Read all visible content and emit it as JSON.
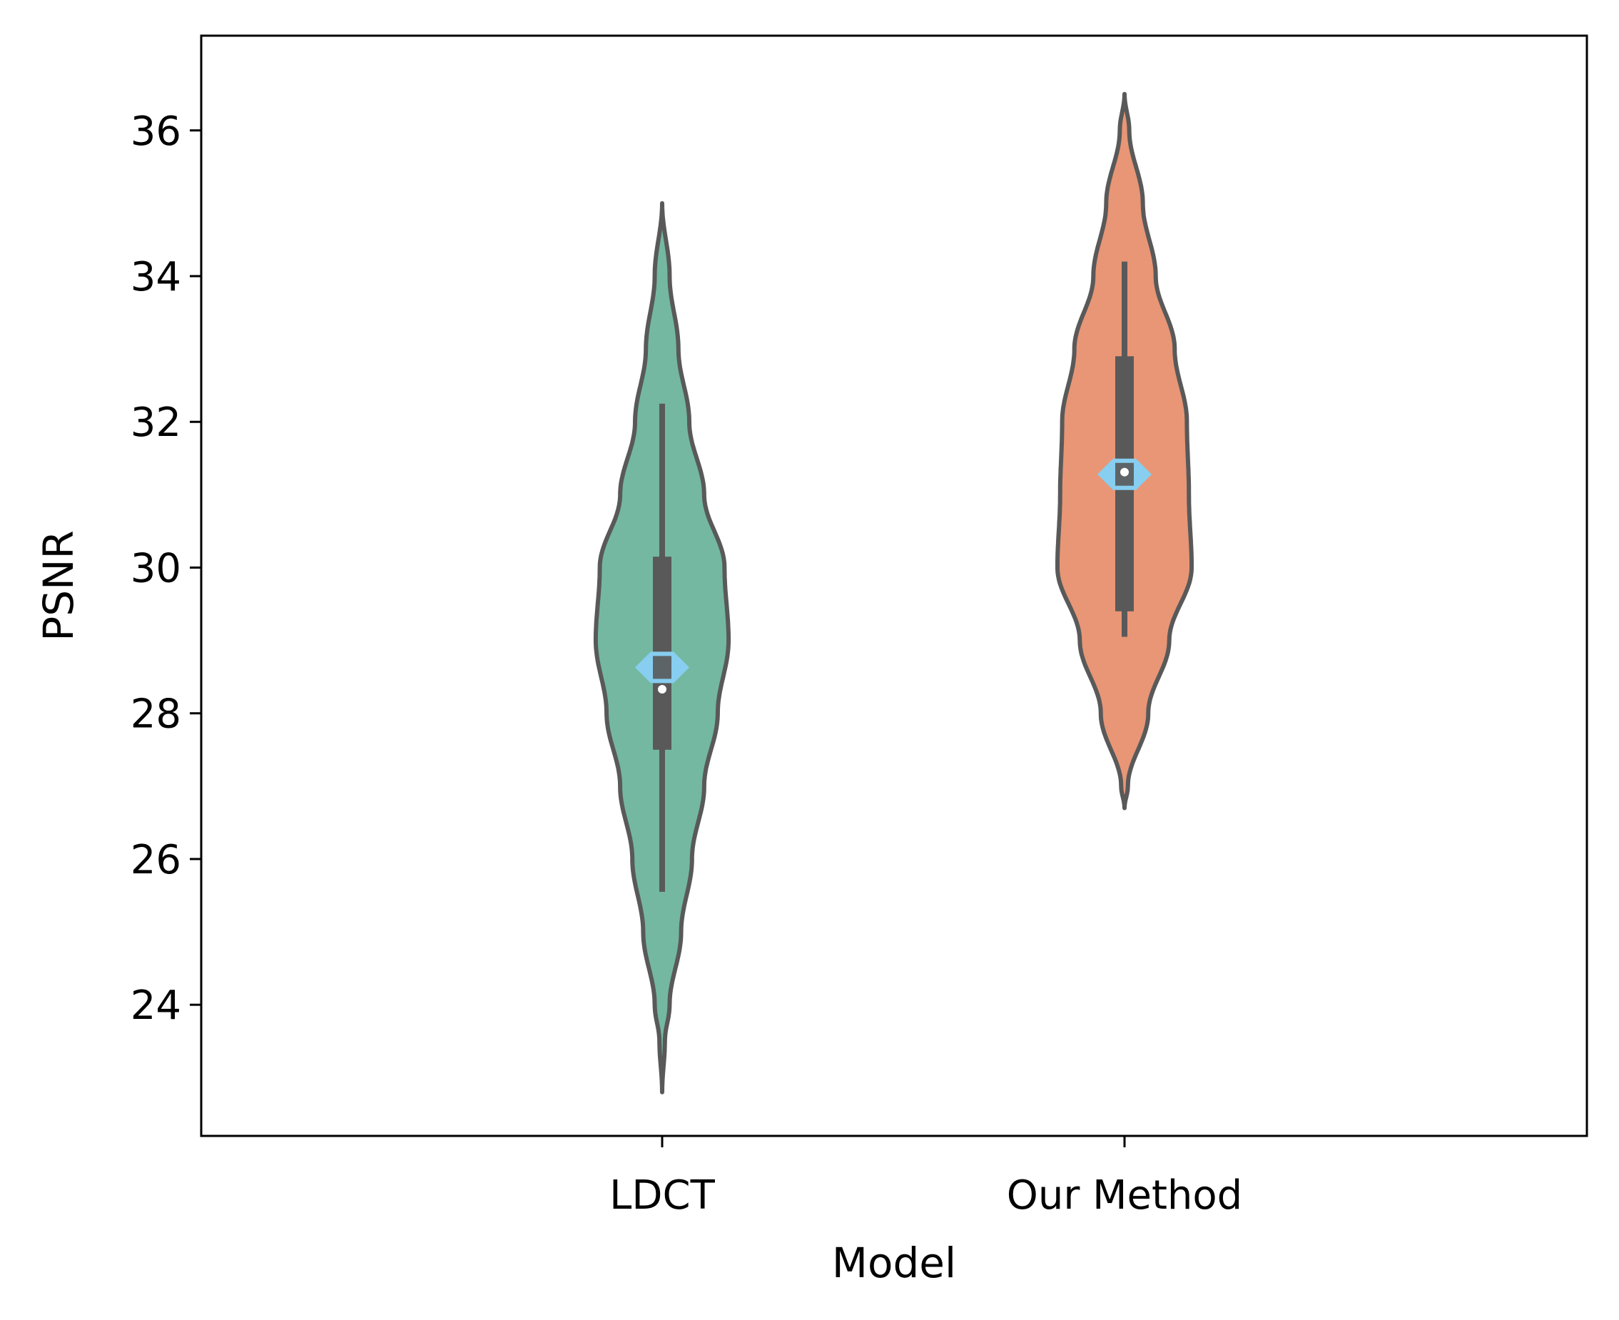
{
  "chart_data": {
    "type": "violin",
    "title": "",
    "xlabel": "Model",
    "ylabel": "PSNR",
    "categories": [
      "LDCT",
      "Our Method"
    ],
    "ylim": [
      22.2,
      37.3
    ],
    "yticks": [
      24,
      26,
      28,
      30,
      32,
      34,
      36
    ],
    "grid": false,
    "legend": "none",
    "series": [
      {
        "name": "LDCT",
        "color": "#74b8a2",
        "range": [
          22.8,
          35.0
        ],
        "density_profile": [
          [
            22.8,
            0.0
          ],
          [
            23.5,
            0.04
          ],
          [
            24.0,
            0.11
          ],
          [
            25.0,
            0.28
          ],
          [
            26.0,
            0.44
          ],
          [
            27.0,
            0.62
          ],
          [
            28.0,
            0.82
          ],
          [
            29.0,
            0.98
          ],
          [
            30.0,
            0.92
          ],
          [
            31.0,
            0.62
          ],
          [
            32.0,
            0.4
          ],
          [
            33.0,
            0.24
          ],
          [
            34.0,
            0.11
          ],
          [
            35.0,
            0.0
          ]
        ],
        "whisker": [
          25.55,
          32.25
        ],
        "box": [
          27.5,
          30.15
        ],
        "median": 28.33,
        "mean": 28.63
      },
      {
        "name": "Our Method",
        "color": "#e89676",
        "range": [
          26.7,
          36.5
        ],
        "density_profile": [
          [
            26.7,
            0.0
          ],
          [
            27.0,
            0.05
          ],
          [
            28.0,
            0.35
          ],
          [
            29.0,
            0.66
          ],
          [
            30.0,
            0.99
          ],
          [
            31.0,
            0.95
          ],
          [
            32.0,
            0.92
          ],
          [
            33.0,
            0.74
          ],
          [
            34.0,
            0.46
          ],
          [
            35.0,
            0.27
          ],
          [
            36.0,
            0.07
          ],
          [
            36.5,
            0.0
          ]
        ],
        "whisker": [
          29.05,
          34.2
        ],
        "box": [
          29.4,
          32.9
        ],
        "median": 31.31,
        "mean": 31.28
      }
    ],
    "inner_box_color": "#595959",
    "outline_color": "#595959",
    "mean_marker_color": "#87cef0",
    "median_marker_color": "#ffffff"
  }
}
